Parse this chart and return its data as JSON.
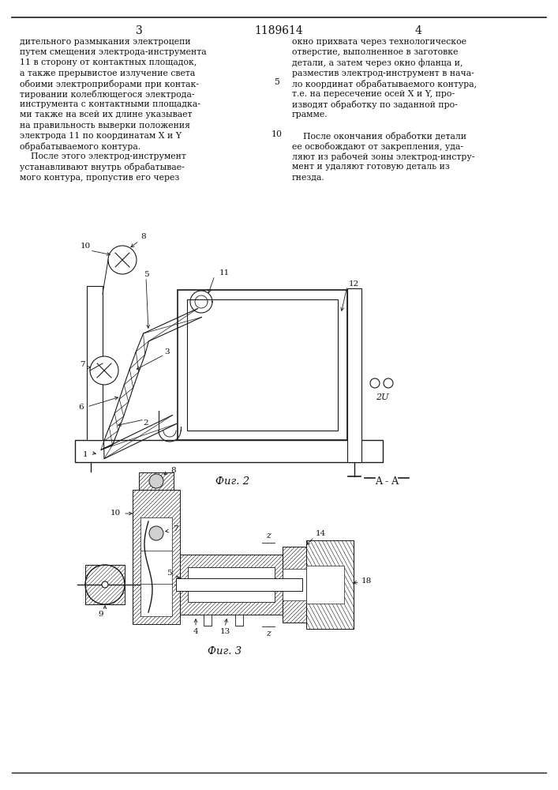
{
  "patent_number": "1189614",
  "page_left": "3",
  "page_right": "4",
  "line_color": "#1a1a1a",
  "text_color": "#111111",
  "fig2_caption": "Фиг. 2",
  "fig3_caption": "Фиг. 3",
  "fig3_section_label": "A - A",
  "text_left": [
    "дительного размыкания электроцепи",
    "путем смещения электрода-инструмента",
    "11 в сторону от контактных площадок,",
    "а также прерывистое излучение света",
    "обоими электроприборами при контак-",
    "тировании колеблющегося электрода-",
    "инструмента с контактными площадка-",
    "ми также на всей их длине указывает",
    "на правильность выверки положения",
    "электрода 11 по координатам X и Y",
    "обрабатываемого контура.",
    "    После этого электрод-инструмент",
    "устанавливают внутрь обрабатывае-",
    "мого контура, пропустив его через"
  ],
  "text_right": [
    "окно прихвата через технологическое",
    "отверстие, выполненное в заготовке",
    "детали, а затем через окно фланца и,",
    "разместив электрод-инструмент в нача-",
    "ло координат обрабатываемого контура,",
    "т.е. на пересечение осей X и Y, про-",
    "изводят обработку по заданной про-",
    "грамме.",
    "",
    "    После окончания обработки детали",
    "ее освобождают от закрепления, уда-",
    "ляют из рабочей зоны электрод-инстру-",
    "мент и удаляют готовую деталь из",
    "гнезда."
  ]
}
